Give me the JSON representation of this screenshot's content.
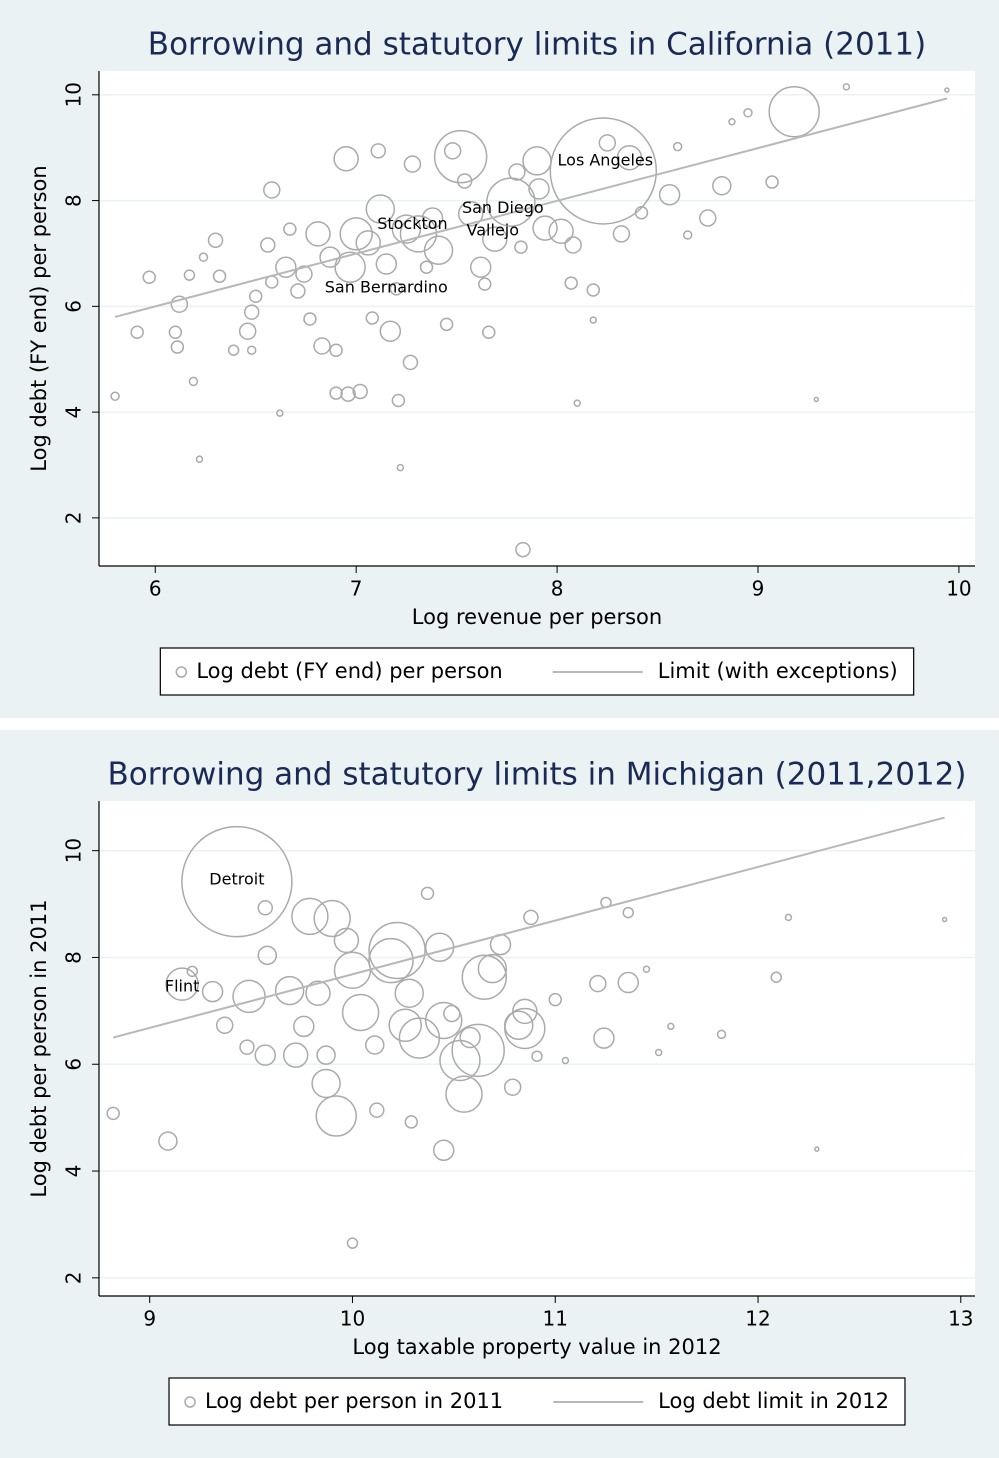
{
  "chart_data": [
    {
      "type": "scatter",
      "title": "Borrowing and statutory limits in California (2011)",
      "x_label": "Log revenue per person",
      "y_label": "Log debt (FY end) per person",
      "xlim": [
        5.72,
        10.08
      ],
      "ylim": [
        1.09,
        10.45
      ],
      "xticks": [
        6,
        7,
        8,
        9,
        10
      ],
      "yticks": [
        2,
        4,
        6,
        8,
        10
      ],
      "grid": true,
      "legend": "bottom",
      "series": [
        {
          "name": "Log debt (FY end) per person",
          "type": "scatter",
          "color": "#aaaaaa",
          "x": [
            5.8,
            5.91,
            5.97,
            6.1,
            6.11,
            6.12,
            6.17,
            6.19,
            6.22,
            6.24,
            6.3,
            6.32,
            6.39,
            6.46,
            6.48,
            6.48,
            6.5,
            6.56,
            6.58,
            6.58,
            6.62,
            6.65,
            6.67,
            6.71,
            6.74,
            6.77,
            6.81,
            6.83,
            6.87,
            6.9,
            6.9,
            6.95,
            6.96,
            6.97,
            7.0,
            7.02,
            7.06,
            7.08,
            7.11,
            7.12,
            7.15,
            7.17,
            7.2,
            7.21,
            7.22,
            7.25,
            7.27,
            7.28,
            7.31,
            7.35,
            7.38,
            7.41,
            7.45,
            7.48,
            7.52,
            7.54,
            7.57,
            7.62,
            7.64,
            7.66,
            7.69,
            7.77,
            7.8,
            7.82,
            7.9,
            7.91,
            7.94,
            8.02,
            8.08,
            8.07,
            8.1,
            8.18,
            8.23,
            8.25,
            8.32,
            8.36,
            8.42,
            8.56,
            8.6,
            8.65,
            8.75,
            8.82,
            8.87,
            8.95,
            9.07,
            9.18,
            9.29,
            9.44,
            9.94,
            7.83,
            8.18
          ],
          "values": [
            4.3,
            5.51,
            6.55,
            5.51,
            5.23,
            6.04,
            6.59,
            4.58,
            3.11,
            6.93,
            7.25,
            6.57,
            5.17,
            5.53,
            5.17,
            5.89,
            6.19,
            7.16,
            8.2,
            6.46,
            3.98,
            6.74,
            7.46,
            6.29,
            6.61,
            5.76,
            7.37,
            5.25,
            6.93,
            5.17,
            4.36,
            8.79,
            4.34,
            6.74,
            7.37,
            4.39,
            7.2,
            5.78,
            8.94,
            7.84,
            6.8,
            5.53,
            6.33,
            4.22,
            2.95,
            7.46,
            4.94,
            8.69,
            7.37,
            6.74,
            7.67,
            7.06,
            5.66,
            8.94,
            8.83,
            8.37,
            7.75,
            6.74,
            6.42,
            5.51,
            7.27,
            7.97,
            8.54,
            7.12,
            8.75,
            8.22,
            7.48,
            7.42,
            7.16,
            6.44,
            4.17,
            6.31,
            8.56,
            9.09,
            7.37,
            8.81,
            7.77,
            8.11,
            9.02,
            7.35,
            7.67,
            8.28,
            9.49,
            9.66,
            8.35,
            9.68,
            4.24,
            10.15,
            10.09,
            1.4,
            5.74
          ],
          "sizes": [
            4,
            6,
            6,
            6,
            6,
            8,
            5,
            4,
            3,
            4,
            7,
            6,
            5,
            8,
            4,
            7,
            6,
            7,
            8,
            6,
            3,
            10,
            6,
            7,
            8,
            6,
            12,
            8,
            10,
            6,
            6,
            12,
            7,
            15,
            16,
            7,
            12,
            6,
            7,
            14,
            10,
            10,
            6,
            6,
            3,
            14,
            7,
            8,
            18,
            6,
            10,
            14,
            6,
            8,
            26,
            7,
            12,
            10,
            6,
            6,
            12,
            24,
            8,
            6,
            14,
            10,
            12,
            12,
            8,
            6,
            3,
            6,
            53,
            8,
            8,
            12,
            6,
            10,
            4,
            4,
            8,
            9,
            3,
            4,
            6,
            25,
            2,
            3,
            2,
            7,
            3
          ]
        },
        {
          "name": "Limit (with exceptions)",
          "type": "line",
          "color": "#b8b8b8",
          "x": [
            5.8,
            9.94
          ],
          "values": [
            5.8,
            9.93
          ]
        }
      ],
      "annotations": [
        {
          "text": "Los Angeles",
          "x": 8.24,
          "y": 8.75
        },
        {
          "text": "Stockton",
          "x": 7.28,
          "y": 7.55
        },
        {
          "text": "San Diego",
          "x": 7.73,
          "y": 7.85
        },
        {
          "text": "Vallejo",
          "x": 7.68,
          "y": 7.42
        },
        {
          "text": "San Bernardino",
          "x": 7.15,
          "y": 6.35
        }
      ]
    },
    {
      "type": "scatter",
      "title": "Borrowing and statutory limits in Michigan (2011,2012)",
      "x_label": "Log taxable property value in 2012",
      "y_label": "Log debt per person in 2011",
      "xlim": [
        8.75,
        13.07
      ],
      "ylim": [
        1.66,
        10.93
      ],
      "xticks": [
        9,
        10,
        11,
        12,
        13
      ],
      "yticks": [
        2,
        4,
        6,
        8,
        10
      ],
      "grid": true,
      "legend": "bottom",
      "series": [
        {
          "name": "Log debt per person in 2011",
          "type": "scatter",
          "color": "#aaaaaa",
          "x": [
            9.43,
            9.16,
            8.82,
            9.09,
            9.21,
            9.31,
            9.37,
            9.49,
            9.57,
            9.58,
            9.57,
            9.48,
            9.69,
            9.72,
            9.79,
            9.76,
            9.83,
            9.87,
            9.87,
            9.9,
            9.92,
            9.97,
            10.0,
            10.0,
            10.04,
            10.12,
            10.11,
            10.19,
            10.22,
            10.26,
            10.28,
            10.29,
            10.33,
            10.37,
            10.43,
            10.45,
            10.49,
            10.53,
            10.55,
            10.45,
            10.58,
            10.62,
            10.65,
            10.69,
            10.73,
            10.79,
            10.82,
            10.85,
            10.88,
            10.85,
            10.91,
            11.0,
            11.05,
            11.21,
            11.24,
            11.25,
            11.36,
            11.36,
            11.45,
            11.51,
            11.57,
            11.82,
            12.09,
            12.15,
            12.29,
            12.92
          ],
          "values": [
            9.42,
            7.5,
            5.08,
            4.56,
            7.74,
            7.36,
            6.73,
            7.27,
            8.93,
            8.04,
            6.17,
            6.32,
            7.38,
            6.17,
            8.77,
            6.71,
            7.33,
            6.17,
            5.64,
            8.73,
            5.03,
            8.32,
            2.65,
            7.76,
            6.97,
            5.14,
            6.36,
            7.94,
            8.13,
            6.73,
            7.33,
            4.92,
            6.49,
            9.2,
            8.19,
            4.39,
            6.95,
            6.07,
            5.44,
            6.82,
            6.5,
            6.26,
            7.63,
            7.79,
            8.24,
            5.57,
            6.73,
            6.67,
            8.75,
            6.99,
            6.15,
            7.21,
            6.07,
            7.51,
            6.49,
            9.03,
            8.84,
            7.53,
            7.78,
            6.22,
            6.71,
            6.56,
            7.63,
            8.75,
            4.41,
            8.71
          ],
          "sizes": [
            55,
            16,
            6,
            9,
            5,
            10,
            8,
            16,
            7,
            9,
            10,
            7,
            14,
            12,
            18,
            10,
            12,
            9,
            14,
            18,
            20,
            12,
            5,
            18,
            18,
            7,
            9,
            22,
            28,
            16,
            14,
            6,
            20,
            6,
            14,
            10,
            8,
            20,
            18,
            18,
            10,
            26,
            22,
            14,
            10,
            8,
            14,
            20,
            7,
            12,
            5,
            6,
            3,
            8,
            10,
            5,
            5,
            10,
            3,
            3,
            3,
            4,
            5,
            3,
            2,
            2
          ]
        },
        {
          "name": "Log debt limit in 2012",
          "type": "line",
          "color": "#b8b8b8",
          "x": [
            8.82,
            12.92
          ],
          "values": [
            6.5,
            10.62
          ]
        }
      ],
      "annotations": [
        {
          "text": "Detroit",
          "x": 9.43,
          "y": 9.45
        },
        {
          "text": "Flint",
          "x": 9.16,
          "y": 7.45
        }
      ]
    }
  ]
}
